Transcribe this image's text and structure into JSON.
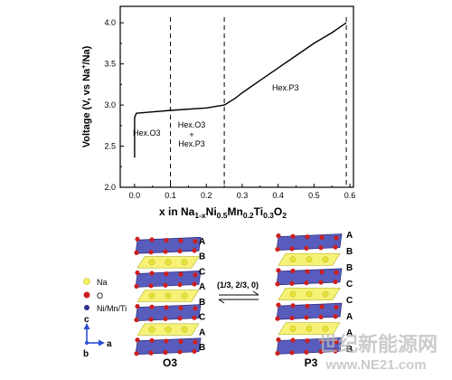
{
  "chart_data": {
    "type": "line",
    "xlabel_parts": {
      "pre": "x in Na",
      "sub1": "1-x",
      "t2": "Ni",
      "sub2": "0.5",
      "t3": "Mn",
      "sub3": "0.2",
      "t4": "Ti",
      "sub4": "0.3",
      "t5": "O",
      "sub5": "2"
    },
    "ylabel_parts": {
      "pre": "Voltage (V, vs Na",
      "sup": "+",
      "post": "/Na)"
    },
    "xlim": [
      -0.04,
      0.61
    ],
    "ylim": [
      2.0,
      4.2
    ],
    "x_ticks": [
      0.0,
      0.1,
      0.2,
      0.3,
      0.4,
      0.5,
      0.6
    ],
    "x_tick_labels": [
      "0.0",
      "0.1",
      "0.2",
      "0.3",
      "0.4",
      "0.5",
      "0.6"
    ],
    "y_ticks": [
      2.0,
      2.5,
      3.0,
      3.5,
      4.0
    ],
    "y_tick_labels": [
      "2.0",
      "2.5",
      "3.0",
      "3.5",
      "4.0"
    ],
    "series": [
      {
        "values_xy": [
          [
            0.0,
            2.36
          ],
          [
            0.0,
            2.85
          ],
          [
            0.005,
            2.9
          ],
          [
            0.03,
            2.91
          ],
          [
            0.1,
            2.935
          ],
          [
            0.2,
            2.965
          ],
          [
            0.25,
            3.0
          ],
          [
            0.28,
            3.08
          ],
          [
            0.3,
            3.15
          ],
          [
            0.35,
            3.3
          ],
          [
            0.4,
            3.45
          ],
          [
            0.45,
            3.6
          ],
          [
            0.5,
            3.75
          ],
          [
            0.55,
            3.88
          ],
          [
            0.59,
            4.0
          ]
        ]
      }
    ],
    "dashed_lines_x": [
      0.1,
      0.25,
      0.59
    ],
    "annotations": {
      "region1": "Hex.O3",
      "region2_line1": "Hex.O3",
      "region2_line2": "+",
      "region2_line3": "Hex.P3",
      "region3": "Hex.P3"
    }
  },
  "diagram": {
    "legend": {
      "na": "Na",
      "o": "O",
      "tm": "Ni/Mn/Ti"
    },
    "axes": {
      "c": "c",
      "b": "b",
      "a": "a"
    },
    "transform_label": "(1/3, 2/3, 0)",
    "o3": {
      "caption": "O3",
      "layers": [
        "A",
        "B",
        "C",
        "A",
        "B",
        "C",
        "A",
        "B"
      ]
    },
    "p3": {
      "caption": "P3",
      "layers": [
        "A",
        "B",
        "B",
        "C",
        "C",
        "A",
        "A",
        "B"
      ]
    },
    "colors": {
      "na": "#f4f060",
      "o": "#cc1f1f",
      "tm": "#3b3fb0"
    }
  },
  "watermark": {
    "line1": "世纪新能源网",
    "line2": "www.NE21.com"
  }
}
